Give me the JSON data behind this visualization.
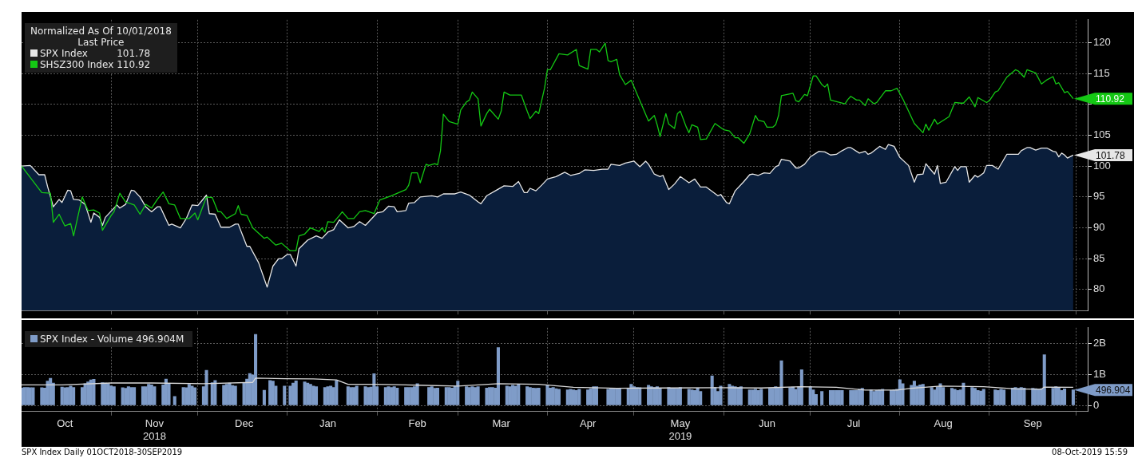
{
  "chart_data": [
    {
      "type": "line",
      "legend_title": "Normalized As Of 10/01/2018\nLast Price",
      "legend": "top left",
      "grid": true,
      "tick_labels": "y",
      "xlim": [
        "2018-10-01",
        "2019-10-05"
      ],
      "xticks": [
        {
          "value": "2018-11-01",
          "label": null
        },
        {
          "value": "2018-12-01",
          "label": null
        },
        {
          "value": "2019-01-01",
          "label": null
        },
        {
          "value": "2019-02-01",
          "label": null
        },
        {
          "value": "2019-03-01",
          "label": null
        },
        {
          "value": "2019-04-01",
          "label": null
        },
        {
          "value": "2019-05-01",
          "label": null
        },
        {
          "value": "2019-06-01",
          "label": null
        },
        {
          "value": "2019-07-01",
          "label": null
        },
        {
          "value": "2019-08-01",
          "label": null
        },
        {
          "value": "2019-09-01",
          "label": null
        },
        {
          "value": "2019-10-01",
          "label": null
        }
      ],
      "ylim": [
        76.6,
        123.7
      ],
      "yticks": [
        80,
        85,
        90,
        95,
        100,
        105,
        {
          "value": 110,
          "label": null
        },
        115,
        120
      ],
      "series": [
        {
          "name": "SPX Index",
          "type": "area",
          "color": "#e6e6e6",
          "x": [
            "2018-10-01",
            "2018-10-04",
            "2018-10-07",
            "2018-10-09",
            "2018-10-10",
            "2018-10-12",
            "2018-10-14",
            "2018-10-15",
            "2018-10-17",
            "2018-10-18",
            "2018-10-19",
            "2018-10-21",
            "2018-10-23",
            "2018-10-25",
            "2018-10-26",
            "2018-10-28",
            "2018-10-29",
            "2018-10-30",
            "2018-11-03",
            "2018-11-04",
            "2018-11-06",
            "2018-11-08",
            "2018-11-09",
            "2018-11-11",
            "2018-11-13",
            "2018-11-15",
            "2018-11-17",
            "2018-11-18",
            "2018-11-21",
            "2018-11-22",
            "2018-11-25",
            "2018-11-27",
            "2018-11-29",
            "2018-12-01",
            "2018-12-04",
            "2018-12-05",
            "2018-12-07",
            "2018-12-09",
            "2018-12-12",
            "2018-12-14",
            "2018-12-15",
            "2018-12-18",
            "2018-12-19",
            "2018-12-22",
            "2018-12-25",
            "2018-12-27",
            "2018-12-29",
            "2018-12-30",
            "2019-01-01",
            "2019-01-02",
            "2019-01-04",
            "2019-01-05",
            "2019-01-08",
            "2019-01-11",
            "2019-01-13",
            "2019-01-15",
            "2019-01-17",
            "2019-01-19",
            "2019-01-22",
            "2019-01-24",
            "2019-01-26",
            "2019-01-28",
            "2019-01-30",
            "2019-02-01",
            "2019-02-03",
            "2019-02-05",
            "2019-02-07",
            "2019-02-08",
            "2019-02-11",
            "2019-02-12",
            "2019-02-14",
            "2019-02-16",
            "2019-02-20",
            "2019-02-22",
            "2019-02-24",
            "2019-02-28",
            "2019-03-02",
            "2019-03-05",
            "2019-03-08",
            "2019-03-09",
            "2019-03-11",
            "2019-03-14",
            "2019-03-17",
            "2019-03-20",
            "2019-03-22",
            "2019-03-24",
            "2019-03-25",
            "2019-03-26",
            "2019-03-28",
            "2019-03-30",
            "2019-04-01",
            "2019-04-04",
            "2019-04-07",
            "2019-04-09",
            "2019-04-12",
            "2019-04-14",
            "2019-04-17",
            "2019-04-20",
            "2019-04-22",
            "2019-04-23",
            "2019-04-26",
            "2019-04-28",
            "2019-05-01",
            "2019-05-03",
            "2019-05-05",
            "2019-05-06",
            "2019-05-08",
            "2019-05-10",
            "2019-05-11",
            "2019-05-13",
            "2019-05-15",
            "2019-05-17",
            "2019-05-20",
            "2019-05-22",
            "2019-05-24",
            "2019-05-26",
            "2019-05-30",
            "2019-05-31",
            "2019-06-02",
            "2019-06-03",
            "2019-06-05",
            "2019-06-08",
            "2019-06-10",
            "2019-06-11",
            "2019-06-13",
            "2019-06-15",
            "2019-06-17",
            "2019-06-19",
            "2019-06-20",
            "2019-06-21",
            "2019-06-24",
            "2019-06-26",
            "2019-06-27",
            "2019-06-29",
            "2019-07-01",
            "2019-07-04",
            "2019-07-06",
            "2019-07-08",
            "2019-07-10",
            "2019-07-12",
            "2019-07-14",
            "2019-07-15",
            "2019-07-18",
            "2019-07-20",
            "2019-07-21",
            "2019-07-22",
            "2019-07-25",
            "2019-07-27",
            "2019-07-28",
            "2019-07-30",
            "2019-08-01",
            "2019-08-04",
            "2019-08-06",
            "2019-08-07",
            "2019-08-09",
            "2019-08-10",
            "2019-08-11",
            "2019-08-13",
            "2019-08-14",
            "2019-08-15",
            "2019-08-17",
            "2019-08-20",
            "2019-08-21",
            "2019-08-22",
            "2019-08-24",
            "2019-08-25",
            "2019-08-27",
            "2019-08-28",
            "2019-08-30",
            "2019-08-31",
            "2019-09-02",
            "2019-09-04",
            "2019-09-07",
            "2019-09-11",
            "2019-09-12",
            "2019-09-14",
            "2019-09-15",
            "2019-09-17",
            "2019-09-19",
            "2019-09-21",
            "2019-09-23",
            "2019-09-24",
            "2019-09-25",
            "2019-09-26",
            "2019-09-27",
            "2019-09-28",
            "2019-09-30"
          ],
          "values": [
            100,
            100.1,
            98.6,
            98.6,
            96.7,
            93.4,
            94.6,
            94.1,
            96.1,
            96.0,
            94.6,
            94.5,
            93.8,
            90.9,
            92.4,
            91.7,
            90.4,
            91.7,
            93.7,
            93.2,
            93.8,
            96.1,
            96.0,
            95.0,
            93.4,
            92.6,
            93.4,
            93.4,
            90.4,
            90.6,
            90.0,
            91.5,
            93.7,
            93.6,
            95.3,
            92.3,
            92.2,
            90.1,
            90.1,
            90.6,
            90.6,
            87.0,
            87.0,
            84.4,
            80.4,
            83.8,
            85.0,
            85.0,
            85.7,
            85.7,
            83.8,
            86.6,
            88.0,
            88.7,
            88.3,
            89.3,
            89.7,
            91.3,
            90.0,
            90.2,
            91.0,
            90.4,
            91.4,
            92.4,
            92.6,
            93.5,
            93.4,
            92.6,
            92.8,
            94.0,
            94.1,
            95.0,
            95.2,
            95.0,
            95.5,
            95.5,
            95.8,
            95.3,
            94.2,
            93.9,
            95.2,
            96.0,
            96.8,
            96.7,
            97.5,
            95.7,
            95.7,
            96.4,
            96.0,
            96.9,
            97.9,
            98.3,
            99.0,
            98.5,
            98.8,
            99.4,
            99.3,
            99.5,
            99.5,
            100.3,
            100.1,
            100.5,
            100.8,
            99.9,
            100.8,
            100.3,
            98.7,
            98.3,
            98.5,
            96.2,
            97.1,
            98.3,
            97.3,
            97.9,
            96.6,
            96.6,
            95.2,
            95.4,
            94.1,
            93.9,
            96.0,
            97.5,
            98.6,
            98.7,
            98.5,
            98.9,
            98.8,
            99.9,
            100.1,
            101.1,
            100.8,
            99.7,
            99.7,
            100.3,
            101.5,
            102.4,
            102.3,
            101.8,
            101.9,
            102.5,
            103.0,
            103.0,
            102.1,
            102.4,
            101.9,
            102.1,
            103.2,
            102.7,
            103.5,
            103.2,
            101.4,
            100.1,
            97.4,
            98.6,
            98.7,
            100.4,
            99.8,
            98.7,
            100.1,
            97.2,
            97.4,
            99.9,
            99.3,
            99.9,
            99.9,
            97.4,
            98.5,
            98.2,
            98.9,
            100.1,
            100.1,
            99.5,
            101.9,
            101.9,
            102.5,
            103.0,
            103.0,
            102.6,
            102.9,
            102.9,
            102.4,
            102.3,
            101.5,
            102.1,
            101.8,
            101.3,
            101.78
          ]
        },
        {
          "name": "SHSZ300 Index",
          "color": "#14c814",
          "x": [
            "2018-10-01",
            "2018-10-08",
            "2018-10-11",
            "2018-10-12",
            "2018-10-14",
            "2018-10-16",
            "2018-10-18",
            "2018-10-19",
            "2018-10-22",
            "2018-10-24",
            "2018-10-26",
            "2018-10-28",
            "2018-10-29",
            "2018-11-01",
            "2018-11-02",
            "2018-11-04",
            "2018-11-06",
            "2018-11-09",
            "2018-11-11",
            "2018-11-13",
            "2018-11-15",
            "2018-11-17",
            "2018-11-19",
            "2018-11-21",
            "2018-11-23",
            "2018-11-25",
            "2018-11-28",
            "2018-11-30",
            "2018-12-01",
            "2018-12-04",
            "2018-12-06",
            "2018-12-08",
            "2018-12-09",
            "2018-12-11",
            "2018-12-14",
            "2018-12-15",
            "2018-12-16",
            "2018-12-18",
            "2018-12-20",
            "2018-12-24",
            "2018-12-25",
            "2018-12-28",
            "2018-12-30",
            "2019-01-02",
            "2019-01-04",
            "2019-01-05",
            "2019-01-07",
            "2019-01-09",
            "2019-01-12",
            "2019-01-13",
            "2019-01-14",
            "2019-01-15",
            "2019-01-17",
            "2019-01-19",
            "2019-01-20",
            "2019-01-22",
            "2019-01-24",
            "2019-01-26",
            "2019-01-28",
            "2019-01-31",
            "2019-02-02",
            "2019-02-06",
            "2019-02-11",
            "2019-02-12",
            "2019-02-13",
            "2019-02-15",
            "2019-02-16",
            "2019-02-18",
            "2019-02-19",
            "2019-02-21",
            "2019-02-22",
            "2019-02-23",
            "2019-02-24",
            "2019-02-26",
            "2019-03-01",
            "2019-03-02",
            "2019-03-04",
            "2019-03-05",
            "2019-03-06",
            "2019-03-08",
            "2019-03-09",
            "2019-03-11",
            "2019-03-12",
            "2019-03-15",
            "2019-03-16",
            "2019-03-17",
            "2019-03-19",
            "2019-03-23",
            "2019-03-25",
            "2019-03-26",
            "2019-03-28",
            "2019-03-29",
            "2019-03-31",
            "2019-04-01",
            "2019-04-02",
            "2019-04-05",
            "2019-04-08",
            "2019-04-11",
            "2019-04-12",
            "2019-04-15",
            "2019-04-16",
            "2019-04-18",
            "2019-04-19",
            "2019-04-21",
            "2019-04-22",
            "2019-04-23",
            "2019-04-25",
            "2019-04-26",
            "2019-04-28",
            "2019-04-30",
            "2019-05-06",
            "2019-05-08",
            "2019-05-09",
            "2019-05-10",
            "2019-05-12",
            "2019-05-13",
            "2019-05-15",
            "2019-05-16",
            "2019-05-17",
            "2019-05-19",
            "2019-05-20",
            "2019-05-21",
            "2019-05-23",
            "2019-05-24",
            "2019-05-26",
            "2019-05-29",
            "2019-06-01",
            "2019-06-03",
            "2019-06-05",
            "2019-06-06",
            "2019-06-08",
            "2019-06-10",
            "2019-06-12",
            "2019-06-13",
            "2019-06-15",
            "2019-06-16",
            "2019-06-18",
            "2019-06-19",
            "2019-06-20",
            "2019-06-21",
            "2019-06-25",
            "2019-06-26",
            "2019-06-27",
            "2019-06-29",
            "2019-06-30",
            "2019-07-02",
            "2019-07-03",
            "2019-07-05",
            "2019-07-06",
            "2019-07-07",
            "2019-07-08",
            "2019-07-13",
            "2019-07-14",
            "2019-07-15",
            "2019-07-17",
            "2019-07-18",
            "2019-07-20",
            "2019-07-21",
            "2019-07-23",
            "2019-07-24",
            "2019-07-27",
            "2019-07-29",
            "2019-07-31",
            "2019-08-02",
            "2019-08-06",
            "2019-08-09",
            "2019-08-10",
            "2019-08-11",
            "2019-08-13",
            "2019-08-14",
            "2019-08-18",
            "2019-08-20",
            "2019-08-22",
            "2019-08-23",
            "2019-08-25",
            "2019-08-27",
            "2019-08-28",
            "2019-08-31",
            "2019-09-01",
            "2019-09-03",
            "2019-09-04",
            "2019-09-07",
            "2019-09-10",
            "2019-09-11",
            "2019-09-13",
            "2019-09-14",
            "2019-09-17",
            "2019-09-19",
            "2019-09-21",
            "2019-09-23",
            "2019-09-24",
            "2019-09-25",
            "2019-09-27",
            "2019-09-28",
            "2019-09-30"
          ],
          "values": [
            100,
            95.7,
            95.6,
            90.9,
            92.2,
            90.3,
            90.7,
            88.7,
            95.0,
            92.8,
            92.9,
            92.4,
            89.6,
            92.0,
            92.6,
            95.6,
            94.2,
            93.7,
            92.2,
            93.8,
            93.2,
            94.6,
            95.8,
            93.9,
            93.7,
            91.5,
            91.5,
            92.4,
            91.3,
            95.0,
            94.9,
            92.6,
            92.6,
            91.5,
            92.3,
            93.6,
            92.2,
            92.0,
            90.0,
            88.3,
            88.5,
            87.2,
            87.5,
            86.3,
            86.3,
            88.7,
            89.0,
            90.0,
            89.4,
            90.0,
            89.3,
            91.0,
            90.9,
            92.0,
            92.6,
            91.5,
            91.5,
            92.6,
            92.8,
            92.3,
            94.5,
            95.2,
            96.2,
            96.9,
            98.9,
            98.9,
            97.3,
            100.3,
            100.1,
            100.4,
            100.2,
            102.5,
            108.4,
            107.2,
            106.8,
            109.1,
            110.4,
            110.7,
            112.0,
            110.9,
            106.5,
            108.5,
            109.2,
            107.6,
            108.9,
            112.0,
            111.5,
            111.5,
            108.9,
            107.7,
            108.9,
            108.5,
            112.6,
            115.6,
            115.6,
            118.2,
            118.0,
            118.9,
            116.3,
            115.7,
            118.9,
            118.9,
            118.5,
            119.9,
            117.1,
            116.9,
            117.3,
            114.8,
            113.2,
            113.9,
            107.3,
            108.2,
            106.7,
            104.8,
            108.5,
            106.8,
            106.1,
            108.5,
            108.9,
            106.4,
            105.4,
            106.7,
            106.3,
            104.3,
            104.4,
            106.9,
            105.9,
            105.7,
            104.6,
            104.6,
            103.7,
            105.2,
            108.2,
            107.4,
            107.2,
            106.3,
            106.3,
            106.7,
            108.2,
            111.4,
            111.8,
            110.6,
            110.4,
            111.6,
            111.4,
            114.6,
            114.6,
            113.2,
            112.8,
            113.3,
            110.7,
            110.1,
            110.8,
            111.3,
            110.7,
            110.7,
            109.8,
            110.9,
            110.1,
            110.3,
            112.2,
            112.2,
            112.6,
            110.9,
            106.9,
            105.4,
            106.8,
            105.8,
            107.6,
            106.8,
            108.0,
            110.3,
            110.2,
            110.2,
            111.2,
            109.6,
            111.1,
            110.3,
            110.6,
            112.0,
            112.2,
            114.4,
            115.6,
            115.4,
            114.4,
            115.6,
            115.1,
            113.3,
            114.0,
            114.5,
            113.3,
            113.5,
            111.9,
            112.1,
            110.92
          ]
        }
      ],
      "annotations": [
        {
          "text": "110.92",
          "x": "2019-09-30",
          "y": 110.92
        },
        {
          "text": "101.78",
          "x": "2019-09-30",
          "y": 101.78
        }
      ]
    },
    {
      "type": "bar",
      "legend": "top left",
      "grid": true,
      "xlim": [
        "2018-10-01",
        "2019-10-05"
      ],
      "xticks": [
        {
          "value": "2018-10-16",
          "label": "Oct"
        },
        {
          "value": "2018-11-01",
          "label": null
        },
        {
          "value": "2018-11-16",
          "label": "Nov\n2018"
        },
        {
          "value": "2018-12-01",
          "label": null
        },
        {
          "value": "2018-12-17",
          "label": "Dec"
        },
        {
          "value": "2019-01-01",
          "label": null
        },
        {
          "value": "2019-01-15",
          "label": "Jan"
        },
        {
          "value": "2019-02-01",
          "label": null
        },
        {
          "value": "2019-02-15",
          "label": "Feb"
        },
        {
          "value": "2019-03-01",
          "label": null
        },
        {
          "value": "2019-03-16",
          "label": "Mar"
        },
        {
          "value": "2019-04-01",
          "label": null
        },
        {
          "value": "2019-04-15",
          "label": "Apr"
        },
        {
          "value": "2019-05-01",
          "label": null
        },
        {
          "value": "2019-05-17",
          "label": "May\n2019"
        },
        {
          "value": "2019-06-01",
          "label": null
        },
        {
          "value": "2019-06-16",
          "label": "Jun"
        },
        {
          "value": "2019-07-01",
          "label": null
        },
        {
          "value": "2019-07-16",
          "label": "Jul"
        },
        {
          "value": "2019-08-01",
          "label": null
        },
        {
          "value": "2019-08-16",
          "label": "Aug"
        },
        {
          "value": "2019-09-01",
          "label": null
        },
        {
          "value": "2019-09-16",
          "label": "Sep"
        },
        {
          "value": "2019-10-01",
          "label": null
        }
      ],
      "ylim": [
        -0.2,
        2.5
      ],
      "yticks": [
        0,
        {
          "value": 1,
          "label": "1B"
        },
        {
          "value": 2,
          "label": "2B"
        }
      ],
      "x": [
        "2018-10-01",
        "2018-10-02",
        "2018-10-03",
        "2018-10-04",
        "2018-10-05",
        "2018-10-08",
        "2018-10-09",
        "2018-10-10",
        "2018-10-11",
        "2018-10-12",
        "2018-10-15",
        "2018-10-16",
        "2018-10-17",
        "2018-10-18",
        "2018-10-19",
        "2018-10-22",
        "2018-10-23",
        "2018-10-24",
        "2018-10-25",
        "2018-10-26",
        "2018-10-29",
        "2018-10-30",
        "2018-10-31",
        "2018-11-01",
        "2018-11-02",
        "2018-11-05",
        "2018-11-06",
        "2018-11-07",
        "2018-11-08",
        "2018-11-09",
        "2018-11-12",
        "2018-11-13",
        "2018-11-14",
        "2018-11-15",
        "2018-11-16",
        "2018-11-19",
        "2018-11-20",
        "2018-11-21",
        "2018-11-23",
        "2018-11-26",
        "2018-11-27",
        "2018-11-28",
        "2018-11-29",
        "2018-11-30",
        "2018-12-03",
        "2018-12-04",
        "2018-12-06",
        "2018-12-07",
        "2018-12-10",
        "2018-12-11",
        "2018-12-12",
        "2018-12-13",
        "2018-12-14",
        "2018-12-17",
        "2018-12-18",
        "2018-12-19",
        "2018-12-20",
        "2018-12-21",
        "2018-12-24",
        "2018-12-26",
        "2018-12-27",
        "2018-12-28",
        "2018-12-31",
        "2019-01-02",
        "2019-01-03",
        "2019-01-04",
        "2019-01-07",
        "2019-01-08",
        "2019-01-09",
        "2019-01-10",
        "2019-01-11",
        "2019-01-14",
        "2019-01-15",
        "2019-01-16",
        "2019-01-17",
        "2019-01-18",
        "2019-01-22",
        "2019-01-23",
        "2019-01-24",
        "2019-01-25",
        "2019-01-28",
        "2019-01-29",
        "2019-01-30",
        "2019-01-31",
        "2019-02-01",
        "2019-02-04",
        "2019-02-05",
        "2019-02-06",
        "2019-02-07",
        "2019-02-08",
        "2019-02-11",
        "2019-02-12",
        "2019-02-13",
        "2019-02-14",
        "2019-02-15",
        "2019-02-19",
        "2019-02-20",
        "2019-02-21",
        "2019-02-22",
        "2019-02-25",
        "2019-02-26",
        "2019-02-27",
        "2019-02-28",
        "2019-03-01",
        "2019-03-04",
        "2019-03-05",
        "2019-03-06",
        "2019-03-07",
        "2019-03-08",
        "2019-03-11",
        "2019-03-12",
        "2019-03-13",
        "2019-03-14",
        "2019-03-15",
        "2019-03-18",
        "2019-03-19",
        "2019-03-20",
        "2019-03-21",
        "2019-03-22",
        "2019-03-25",
        "2019-03-26",
        "2019-03-27",
        "2019-03-28",
        "2019-03-29",
        "2019-04-01",
        "2019-04-02",
        "2019-04-03",
        "2019-04-04",
        "2019-04-05",
        "2019-04-08",
        "2019-04-09",
        "2019-04-10",
        "2019-04-11",
        "2019-04-12",
        "2019-04-15",
        "2019-04-16",
        "2019-04-17",
        "2019-04-18",
        "2019-04-22",
        "2019-04-23",
        "2019-04-24",
        "2019-04-25",
        "2019-04-26",
        "2019-04-29",
        "2019-04-30",
        "2019-05-01",
        "2019-05-02",
        "2019-05-03",
        "2019-05-06",
        "2019-05-07",
        "2019-05-08",
        "2019-05-09",
        "2019-05-10",
        "2019-05-13",
        "2019-05-14",
        "2019-05-15",
        "2019-05-16",
        "2019-05-17",
        "2019-05-20",
        "2019-05-21",
        "2019-05-22",
        "2019-05-23",
        "2019-05-24",
        "2019-05-28",
        "2019-05-29",
        "2019-05-30",
        "2019-05-31",
        "2019-06-03",
        "2019-06-04",
        "2019-06-05",
        "2019-06-06",
        "2019-06-07",
        "2019-06-10",
        "2019-06-11",
        "2019-06-12",
        "2019-06-13",
        "2019-06-14",
        "2019-06-17",
        "2019-06-18",
        "2019-06-19",
        "2019-06-20",
        "2019-06-21",
        "2019-06-24",
        "2019-06-25",
        "2019-06-26",
        "2019-06-27",
        "2019-06-28",
        "2019-07-01",
        "2019-07-02",
        "2019-07-03",
        "2019-07-05",
        "2019-07-08",
        "2019-07-09",
        "2019-07-10",
        "2019-07-11",
        "2019-07-12",
        "2019-07-15",
        "2019-07-16",
        "2019-07-17",
        "2019-07-18",
        "2019-07-19",
        "2019-07-22",
        "2019-07-23",
        "2019-07-24",
        "2019-07-25",
        "2019-07-26",
        "2019-07-29",
        "2019-07-30",
        "2019-07-31",
        "2019-08-01",
        "2019-08-02",
        "2019-08-05",
        "2019-08-06",
        "2019-08-07",
        "2019-08-08",
        "2019-08-09",
        "2019-08-12",
        "2019-08-13",
        "2019-08-14",
        "2019-08-15",
        "2019-08-16",
        "2019-08-19",
        "2019-08-20",
        "2019-08-21",
        "2019-08-22",
        "2019-08-23",
        "2019-08-26",
        "2019-08-27",
        "2019-08-28",
        "2019-08-29",
        "2019-08-30",
        "2019-09-03",
        "2019-09-04",
        "2019-09-05",
        "2019-09-06",
        "2019-09-09",
        "2019-09-10",
        "2019-09-11",
        "2019-09-12",
        "2019-09-13",
        "2019-09-16",
        "2019-09-17",
        "2019-09-18",
        "2019-09-19",
        "2019-09-20",
        "2019-09-23",
        "2019-09-24",
        "2019-09-25",
        "2019-09-26",
        "2019-09-27",
        "2019-09-30"
      ],
      "series": [
        {
          "name": "SPX Index - Volume 496.904M",
          "color": "#7f9cc8",
          "values": [
            0.56,
            0.58,
            0.58,
            0.57,
            0.57,
            0.57,
            0.56,
            0.78,
            0.87,
            0.72,
            0.59,
            0.57,
            0.58,
            0.62,
            0.58,
            0.58,
            0.7,
            0.76,
            0.82,
            0.84,
            0.73,
            0.72,
            0.7,
            0.63,
            0.6,
            0.57,
            0.55,
            0.6,
            0.58,
            0.58,
            0.6,
            0.6,
            0.68,
            0.66,
            0.6,
            0.66,
            0.85,
            0.7,
            0.29,
            0.58,
            0.57,
            0.68,
            0.62,
            0.57,
            0.6,
            1.13,
            0.73,
            0.8,
            0.65,
            0.68,
            0.72,
            0.64,
            0.62,
            0.72,
            0.85,
            1.03,
            0.98,
            2.29,
            0.49,
            0.8,
            0.78,
            0.62,
            0.62,
            0.62,
            0.72,
            0.79,
            0.76,
            0.72,
            0.68,
            0.62,
            0.6,
            0.58,
            0.6,
            0.62,
            0.58,
            0.8,
            0.6,
            0.58,
            0.58,
            0.62,
            0.6,
            0.58,
            0.59,
            1.02,
            0.6,
            0.58,
            0.6,
            0.58,
            0.6,
            0.56,
            0.58,
            0.58,
            0.58,
            0.6,
            0.7,
            0.58,
            0.6,
            0.55,
            0.56,
            0.58,
            0.58,
            0.56,
            0.62,
            0.78,
            0.6,
            0.58,
            0.6,
            0.58,
            0.6,
            0.56,
            0.58,
            0.58,
            0.56,
            1.86,
            0.62,
            0.6,
            0.65,
            0.62,
            0.68,
            0.6,
            0.58,
            0.56,
            0.55,
            0.56,
            0.65,
            0.56,
            0.58,
            0.54,
            0.52,
            0.5,
            0.52,
            0.5,
            0.48,
            0.52,
            0.5,
            0.54,
            0.6,
            0.6,
            0.52,
            0.55,
            0.56,
            0.55,
            0.55,
            0.56,
            0.68,
            0.6,
            0.58,
            0.57,
            0.65,
            0.6,
            0.58,
            0.6,
            0.55,
            0.58,
            0.56,
            0.56,
            0.55,
            0.58,
            0.52,
            0.5,
            0.48,
            0.56,
            0.45,
            0.95,
            0.58,
            0.45,
            0.62,
            0.68,
            0.62,
            0.6,
            0.58,
            0.6,
            0.5,
            0.5,
            0.52,
            0.48,
            0.52,
            0.55,
            0.55,
            0.6,
            0.58,
            1.44,
            0.57,
            0.59,
            0.52,
            0.6,
            1.15,
            0.6,
            0.5,
            0.35,
            0.45,
            0.48,
            0.48,
            0.48,
            0.48,
            0.48,
            0.48,
            0.48,
            0.48,
            0.52,
            0.55,
            0.5,
            0.45,
            0.48,
            0.5,
            0.52,
            0.48,
            0.5,
            0.52,
            0.83,
            0.7,
            0.65,
            0.78,
            0.62,
            0.66,
            0.68,
            0.58,
            0.5,
            0.6,
            0.7,
            0.58,
            0.55,
            0.52,
            0.48,
            0.5,
            0.72,
            0.58,
            0.55,
            0.48,
            0.46,
            0.52,
            0.5,
            0.48,
            0.52,
            0.5,
            0.56,
            0.58,
            0.55,
            0.58,
            0.56,
            0.55,
            0.54,
            0.52,
            0.54,
            1.63,
            0.55,
            0.6,
            0.58,
            0.48,
            0.53,
            0.496904
          ]
        },
        {
          "type": "line",
          "color": "#d9d9d9",
          "x": [
            "2018-10-01",
            "2018-10-15",
            "2018-11-01",
            "2018-11-15",
            "2018-12-03",
            "2018-12-20",
            "2018-12-21",
            "2018-12-31",
            "2019-01-10",
            "2019-01-18",
            "2019-01-22",
            "2019-02-01",
            "2019-02-15",
            "2019-03-01",
            "2019-03-15",
            "2019-03-29",
            "2019-04-10",
            "2019-04-25",
            "2019-05-10",
            "2019-05-30",
            "2019-06-14",
            "2019-06-28",
            "2019-07-10",
            "2019-07-20",
            "2019-07-31",
            "2019-08-05",
            "2019-08-15",
            "2019-08-30",
            "2019-09-10",
            "2019-09-19",
            "2019-09-20",
            "2019-09-30"
          ],
          "values": [
            0.66,
            0.66,
            0.72,
            0.72,
            0.7,
            0.74,
            0.88,
            0.86,
            0.85,
            0.82,
            0.68,
            0.68,
            0.65,
            0.62,
            0.7,
            0.68,
            0.58,
            0.55,
            0.56,
            0.57,
            0.56,
            0.6,
            0.58,
            0.49,
            0.49,
            0.55,
            0.62,
            0.6,
            0.53,
            0.52,
            0.59,
            0.58
          ]
        }
      ],
      "annotations": [
        {
          "text": "496.904",
          "x": "2019-09-30",
          "y": 0.496904
        },
        "SPX Index Daily 01OCT2018-30SEP2019",
        "08-Oct-2019 15:59"
      ]
    }
  ]
}
